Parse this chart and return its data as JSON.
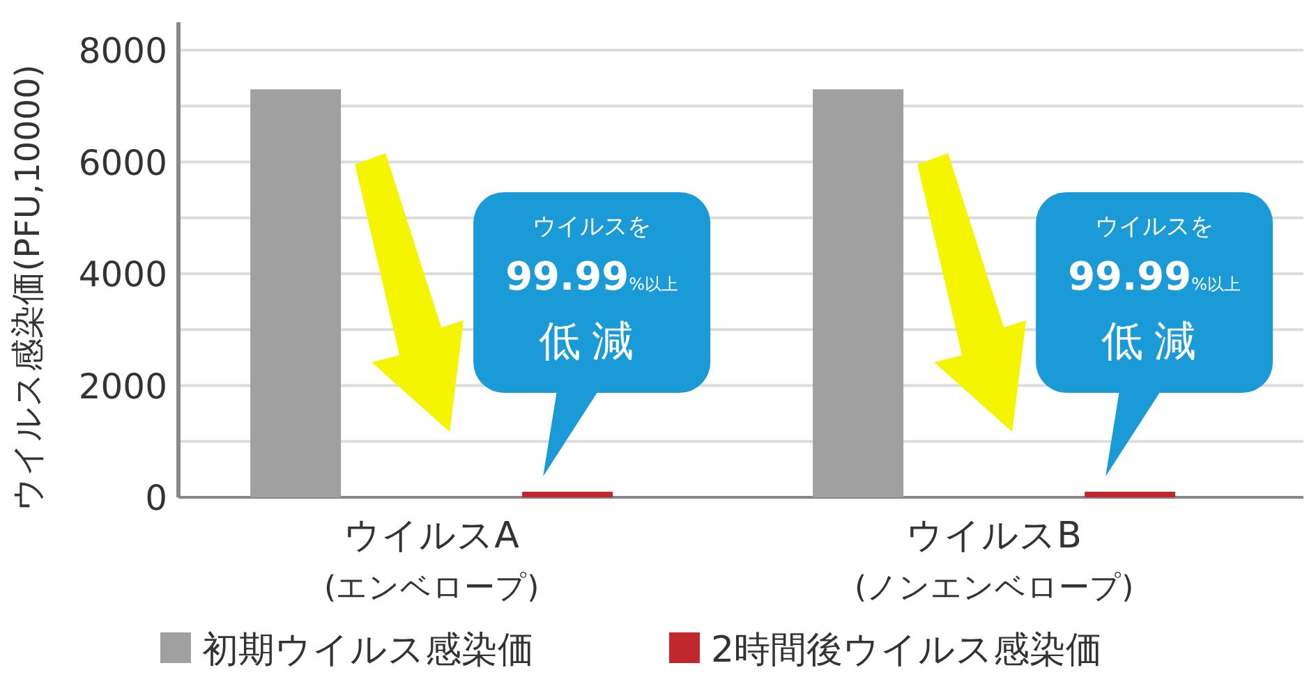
{
  "chart_data": {
    "type": "bar",
    "ylabel": "ウイルス感染価(PFU,10000)",
    "categories": [
      "ウイルスA\n(エンベロープ)",
      "ウイルスB\n(ノンエンベロープ)"
    ],
    "series": [
      {
        "name": "初期ウイルス感染価",
        "color": "#a0a0a0",
        "values": [
          7300,
          7300
        ]
      },
      {
        "name": "2時間後ウイルス感染価",
        "color": "#c0282d",
        "values": [
          100,
          100
        ]
      }
    ],
    "ylim": [
      0,
      8500
    ],
    "yticks": [
      0,
      {
        "value": 1000,
        "label": null
      },
      2000,
      {
        "value": 3000,
        "label": null
      },
      4000,
      {
        "value": 5000,
        "label": null
      },
      6000,
      {
        "value": 7000,
        "label": null
      },
      8000
    ],
    "grid": "y",
    "legend": "bottom",
    "annotations": [
      "ウイルスを",
      "99.99%以上",
      "低減",
      "ウイルスを",
      "99.99%以上",
      "低減"
    ]
  }
}
